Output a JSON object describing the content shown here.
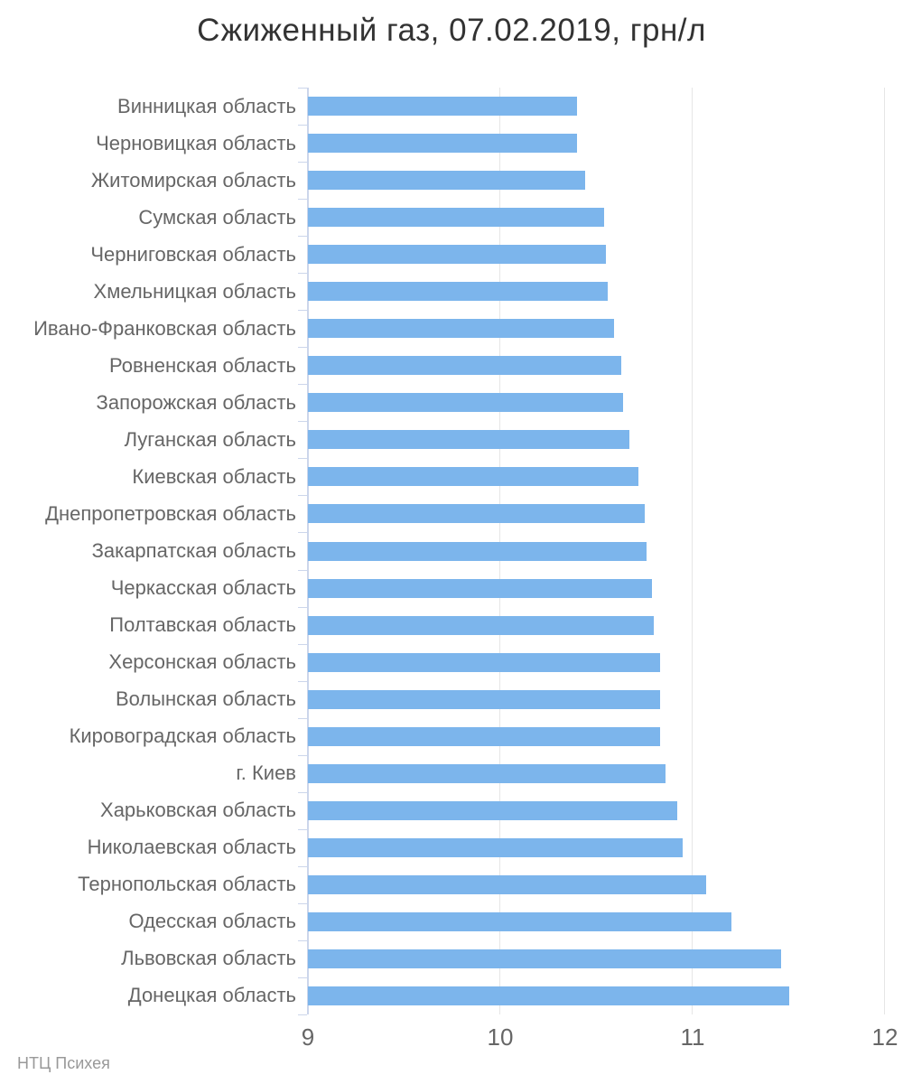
{
  "title": "Сжиженный газ, 07.02.2019, грн/л",
  "credits": "НТЦ Психея",
  "chart_data": {
    "type": "bar",
    "orientation": "horizontal",
    "title": "Сжиженный газ, 07.02.2019, грн/л",
    "xlabel": "",
    "ylabel": "",
    "xlim": [
      9,
      12
    ],
    "xticks": [
      9,
      10,
      11,
      12
    ],
    "grid": true,
    "legend": false,
    "categories": [
      "Винницкая область",
      "Черновицкая область",
      "Житомирская область",
      "Сумская область",
      "Черниговская область",
      "Хмельницкая область",
      "Ивано-Франковская область",
      "Ровненская область",
      "Запорожская область",
      "Луганская область",
      "Киевская область",
      "Днепропетровская область",
      "Закарпатская область",
      "Черкасская область",
      "Полтавская область",
      "Херсонская область",
      "Волынская область",
      "Кировоградская область",
      "г. Киев",
      "Харьковская область",
      "Николаевская область",
      "Тернопольская область",
      "Одесская область",
      "Львовская область",
      "Донецкая область"
    ],
    "values": [
      10.4,
      10.4,
      10.44,
      10.54,
      10.55,
      10.56,
      10.59,
      10.63,
      10.64,
      10.67,
      10.72,
      10.75,
      10.76,
      10.79,
      10.8,
      10.83,
      10.83,
      10.83,
      10.86,
      10.92,
      10.95,
      11.07,
      11.2,
      11.46,
      11.5
    ],
    "colors": {
      "bar": "#7cb5ec",
      "axis": "#ccd6eb",
      "grid": "#e6e6e6",
      "title": "#333333",
      "labels": "#666666",
      "credits": "#999999",
      "background": "#ffffff"
    }
  }
}
